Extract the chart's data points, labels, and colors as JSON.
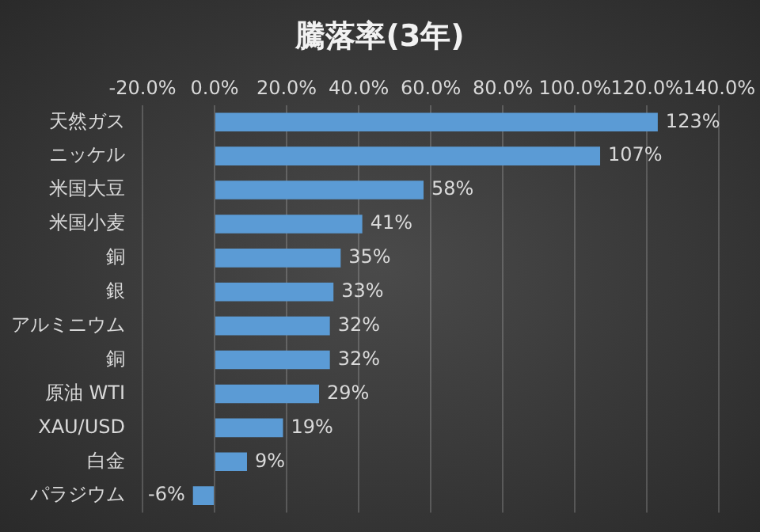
{
  "chart_data": {
    "type": "bar",
    "orientation": "horizontal",
    "title": "騰落率(3年)",
    "categories": [
      "天然ガス",
      "ニッケル",
      "米国大豆",
      "米国小麦",
      "銅",
      "銀",
      "アルミニウム",
      "銅",
      "原油 WTI",
      "XAU/USD",
      "白金",
      "パラジウム"
    ],
    "values": [
      123,
      107,
      58,
      41,
      35,
      33,
      32,
      32,
      29,
      19,
      9,
      -6
    ],
    "value_labels": [
      "123%",
      "107%",
      "58%",
      "41%",
      "35%",
      "33%",
      "32%",
      "32%",
      "29%",
      "19%",
      "9%",
      "-6%"
    ],
    "color": "#5b9bd5",
    "xlim": [
      -20,
      140
    ],
    "xticks": [
      {
        "value": -20,
        "label": "-20.0%"
      },
      {
        "value": 0,
        "label": "0.0%"
      },
      {
        "value": 20,
        "label": "20.0%"
      },
      {
        "value": 40,
        "label": "40.0%"
      },
      {
        "value": 60,
        "label": "60.0%"
      },
      {
        "value": 80,
        "label": "80.0%"
      },
      {
        "value": 100,
        "label": "100.0%"
      },
      {
        "value": 120,
        "label": "120.0%"
      },
      {
        "value": 140,
        "label": "140.0%"
      }
    ],
    "grid": "x",
    "legend": false
  }
}
